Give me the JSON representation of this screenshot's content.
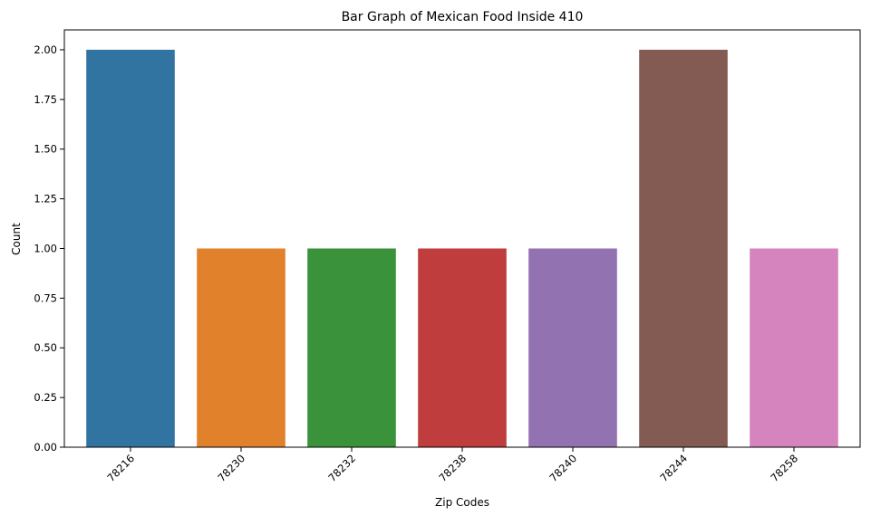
{
  "chart_data": {
    "type": "bar",
    "title": "Bar Graph of Mexican Food Inside 410",
    "xlabel": "Zip Codes",
    "ylabel": "Count",
    "categories": [
      "78216",
      "78230",
      "78232",
      "78238",
      "78240",
      "78244",
      "78258"
    ],
    "values": [
      2,
      1,
      1,
      1,
      1,
      2,
      1
    ],
    "colors": [
      "#3274a1",
      "#e1812c",
      "#3a923a",
      "#c03d3e",
      "#9372b2",
      "#845b53",
      "#d684bd"
    ],
    "ylim": [
      0,
      2.1
    ],
    "yticks": [
      "0.00",
      "0.25",
      "0.50",
      "0.75",
      "1.00",
      "1.25",
      "1.50",
      "1.75",
      "2.00"
    ],
    "xtick_rotation": "45 degrees",
    "grid": false,
    "legend": "none"
  }
}
